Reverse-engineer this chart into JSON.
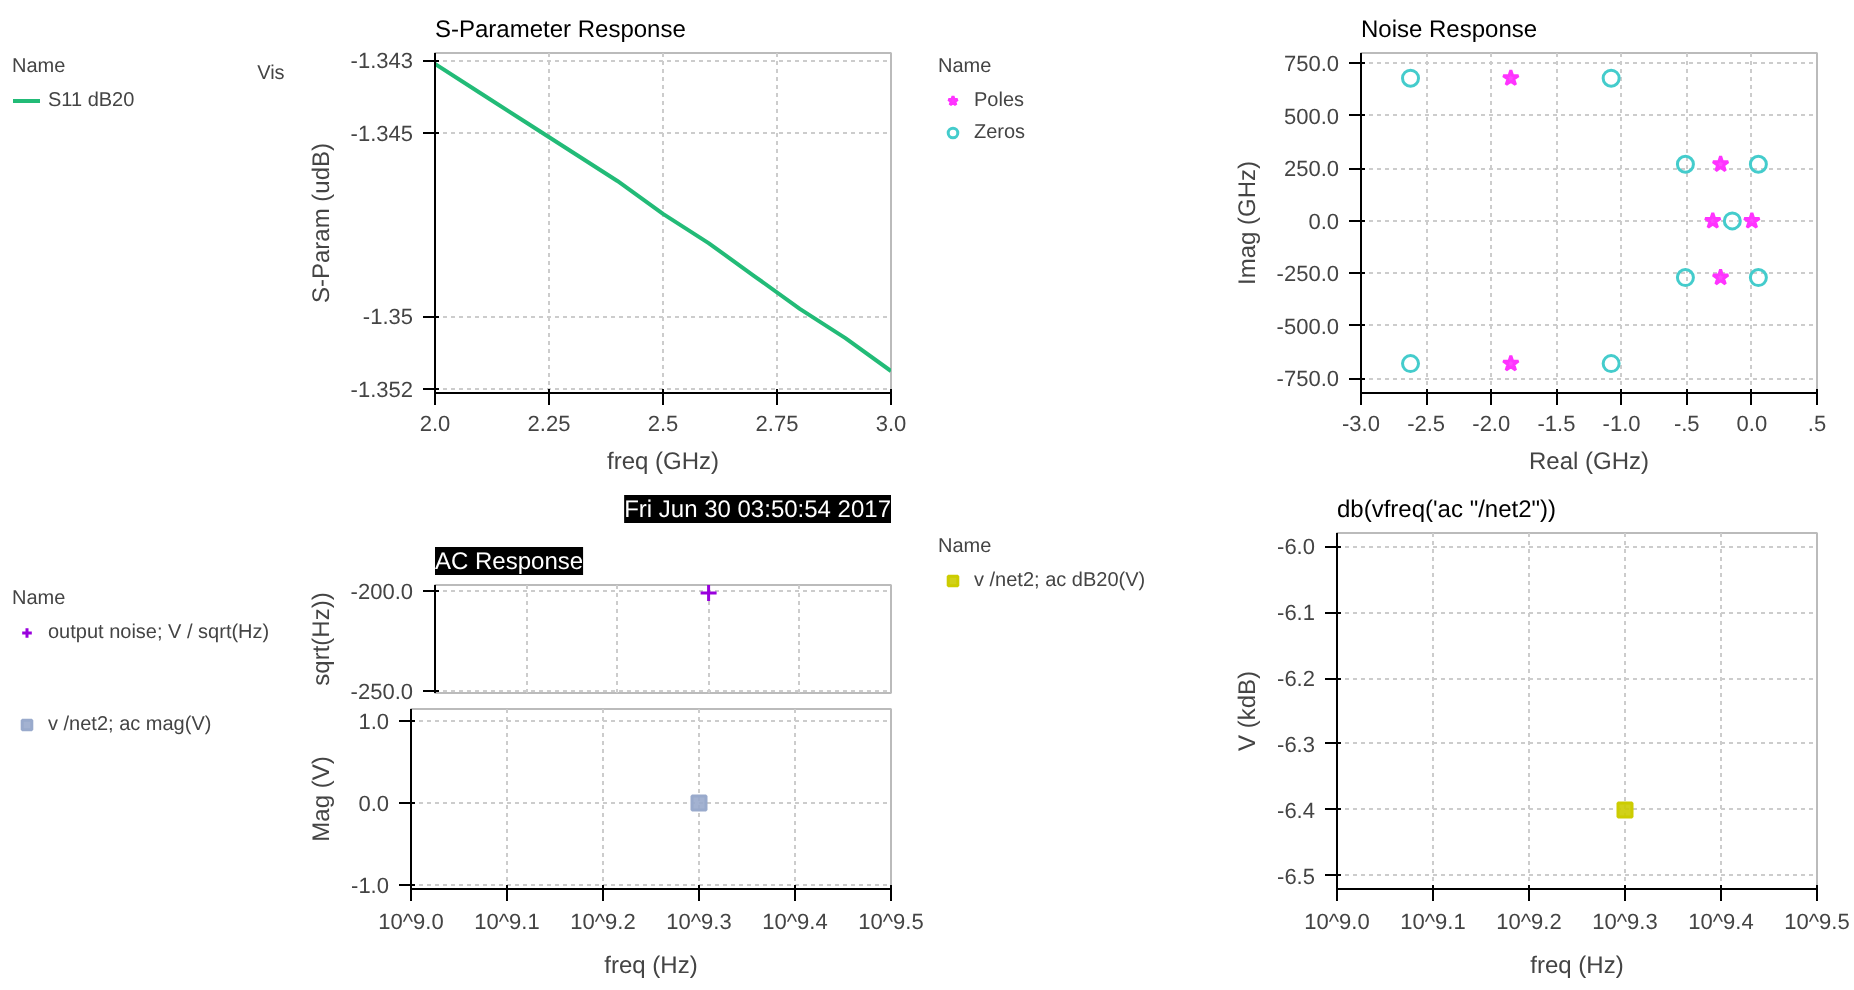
{
  "chart_data": [
    {
      "type": "line",
      "title": "S-Parameter Response",
      "legend_title": "Name",
      "annotations": [
        "Vis"
      ],
      "xlabel": "freq (GHz)",
      "ylabel": "S-Param (udB)",
      "grid": true,
      "legend": "left",
      "x": [
        2.0,
        2.1,
        2.2,
        2.3,
        2.4,
        2.5,
        2.6,
        2.7,
        2.8,
        2.9,
        3.0
      ],
      "series": [
        {
          "name": "S11 dB20",
          "color": "#22bb77",
          "values": [
            -1.3431,
            -1.3439,
            -1.3447,
            -1.3455,
            -1.3463,
            -1.3472,
            -1.348,
            -1.3489,
            -1.3498,
            -1.3506,
            -1.3515
          ]
        }
      ],
      "xlim": [
        2.0,
        3.0
      ],
      "xticks": [
        {
          "value": 2.0,
          "label": "2.0"
        },
        2.25,
        2.5,
        2.75,
        {
          "value": 3.0,
          "label": "3.0"
        }
      ],
      "ylim": [
        -1.3521,
        -1.3428
      ],
      "yticks": [
        -1.343,
        -1.345,
        -1.35,
        -1.352
      ]
    },
    {
      "type": "scatter",
      "title": "Noise Response",
      "legend_title": "Name",
      "xlabel": "Real (GHz)",
      "ylabel": "Imag (GHz)",
      "grid": true,
      "legend": "left",
      "series": [
        {
          "name": "Poles",
          "color": "#ff33ff",
          "marker": "star",
          "x": [
            -1.85,
            -1.85,
            -0.24,
            -0.24,
            -0.3,
            0.0
          ],
          "values": [
            680,
            -680,
            270,
            -270,
            0,
            0
          ]
        },
        {
          "name": "Zeros",
          "color": "#44cccc",
          "marker": "circle",
          "x": [
            -2.62,
            -2.62,
            -1.08,
            -1.08,
            -0.51,
            -0.51,
            0.05,
            0.05,
            -0.15
          ],
          "values": [
            680,
            -680,
            680,
            -680,
            270,
            -270,
            270,
            -270,
            0
          ]
        }
      ],
      "xlim": [
        -3.0,
        0.5
      ],
      "xticks": [
        {
          "value": -3.0,
          "label": "-3.0"
        },
        -2.5,
        {
          "value": -2.0,
          "label": "-2.0"
        },
        -1.5,
        {
          "value": -1.0,
          "label": "-1.0"
        },
        {
          "value": -0.5,
          "label": "-.5"
        },
        {
          "value": 0.0,
          "label": "0.0"
        },
        {
          "value": 0.5,
          "label": ".5"
        }
      ],
      "ylim": [
        -820,
        800
      ],
      "yticks": [
        {
          "value": 750,
          "label": "750.0"
        },
        {
          "value": 500,
          "label": "500.0"
        },
        {
          "value": 250,
          "label": "250.0"
        },
        {
          "value": 0,
          "label": "0.0"
        },
        {
          "value": -250,
          "label": "-250.0"
        },
        {
          "value": -500,
          "label": "-500.0"
        },
        {
          "value": -750,
          "label": "-750.0"
        }
      ]
    },
    {
      "type": "scatter",
      "title": "AC Response",
      "legend_title": "Name",
      "annotations": [
        "Fri Jun 30 03:50:54 2017"
      ],
      "ylabel": "sqrt(Hz))",
      "grid": true,
      "legend": "left",
      "tick_labels": "y",
      "categories": [
        null,
        null,
        null,
        null,
        null,
        null
      ],
      "series": [
        {
          "name": "output noise; V / sqrt(Hz)",
          "color": "#9900dd",
          "marker": "cross",
          "values": [
            null,
            null,
            null,
            -201,
            null,
            null
          ]
        }
      ],
      "ylim": [
        -251,
        -197
      ],
      "yticks": [
        {
          "value": -200,
          "label": "-200.0"
        },
        {
          "value": -250,
          "label": "-250.0"
        }
      ]
    },
    {
      "type": "scatter",
      "xlabel": "freq (Hz)",
      "ylabel": "Mag (V)",
      "grid": true,
      "legend": "left",
      "categories": [
        "10^9.0",
        "10^9.1",
        "10^9.2",
        "10^9.3",
        "10^9.4",
        "10^9.5"
      ],
      "series": [
        {
          "name": "v /net2; ac mag(V)",
          "color": "#99aacc",
          "marker": "square",
          "values": [
            null,
            null,
            null,
            0.0,
            null,
            null
          ]
        }
      ],
      "ylim": [
        -1.05,
        1.15
      ],
      "yticks": [
        {
          "value": 1.0,
          "label": "1.0"
        },
        {
          "value": 0.0,
          "label": "0.0"
        },
        {
          "value": -1.0,
          "label": "-1.0"
        }
      ]
    },
    {
      "type": "scatter",
      "title": "db(vfreq('ac \"/net2\"))",
      "legend_title": "Name",
      "xlabel": "freq (Hz)",
      "ylabel": "V (kdB)",
      "grid": true,
      "legend": "left",
      "categories": [
        "10^9.0",
        "10^9.1",
        "10^9.2",
        "10^9.3",
        "10^9.4",
        "10^9.5"
      ],
      "series": [
        {
          "name": "v /net2; ac dB20(V)",
          "color": "#cccc00",
          "marker": "square",
          "values": [
            null,
            null,
            null,
            -6.4,
            null,
            null
          ]
        }
      ],
      "ylim": [
        -6.52,
        -5.98
      ],
      "yticks": [
        {
          "value": -6.0,
          "label": "-6.0"
        },
        {
          "value": -6.1,
          "label": "-6.1"
        },
        {
          "value": -6.2,
          "label": "-6.2"
        },
        {
          "value": -6.3,
          "label": "-6.3"
        },
        {
          "value": -6.4,
          "label": "-6.4"
        },
        {
          "value": -6.5,
          "label": "-6.5"
        }
      ]
    }
  ]
}
